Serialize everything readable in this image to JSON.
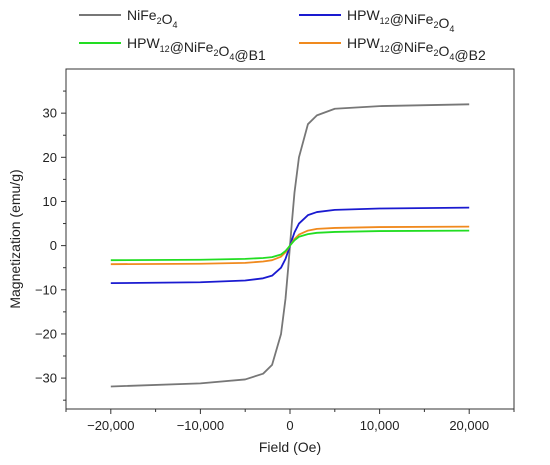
{
  "chart_data": {
    "type": "line",
    "title": "",
    "xlabel": "Field (Oe)",
    "ylabel": "Magnetization (emu/g)",
    "xlim": [
      -25000,
      25000
    ],
    "ylim": [
      -37,
      40
    ],
    "x_ticks": [
      -20000,
      -10000,
      0,
      10000,
      20000
    ],
    "x_tick_labels": [
      "−20,000",
      "−10,000",
      "0",
      "10,000",
      "20,000"
    ],
    "y_ticks": [
      -30,
      -20,
      -10,
      0,
      10,
      20,
      30
    ],
    "y_tick_labels": [
      "−30",
      "−20",
      "−10",
      "0",
      "10",
      "20",
      "30"
    ],
    "grid": false,
    "legend_placement": "top, outside plot, two columns",
    "series": [
      {
        "name": "NiFe2O4",
        "legend_parts": [
          [
            "NiFe",
            false
          ],
          [
            "2",
            true
          ],
          [
            "O",
            false
          ],
          [
            "4",
            true
          ]
        ],
        "color": "#777777",
        "x": [
          -20000,
          -10000,
          -5000,
          -3000,
          -2000,
          -1000,
          -500,
          -200,
          0,
          200,
          500,
          1000,
          2000,
          3000,
          5000,
          10000,
          20000
        ],
        "y": [
          -31.9,
          -31.2,
          -30.3,
          -29.0,
          -27.0,
          -20.0,
          -12.0,
          -5.0,
          0,
          5.0,
          12.0,
          20.0,
          27.5,
          29.5,
          31.0,
          31.6,
          32.0
        ]
      },
      {
        "name": "HPW12@NiFe2O4",
        "legend_parts": [
          [
            "HPW",
            false
          ],
          [
            "12",
            true
          ],
          [
            "@NiFe",
            false
          ],
          [
            "2",
            true
          ],
          [
            "O",
            false
          ],
          [
            "4",
            true
          ]
        ],
        "color": "#1a1ad0",
        "x": [
          -20000,
          -10000,
          -5000,
          -3000,
          -2000,
          -1000,
          -500,
          -200,
          0,
          200,
          500,
          1000,
          2000,
          3000,
          5000,
          10000,
          20000
        ],
        "y": [
          -8.5,
          -8.3,
          -7.9,
          -7.4,
          -6.8,
          -5.0,
          -3.0,
          -1.2,
          0,
          1.2,
          3.0,
          5.0,
          6.9,
          7.6,
          8.1,
          8.4,
          8.6
        ]
      },
      {
        "name": "HPW12@NiFe2O4@B1",
        "legend_parts": [
          [
            "HPW",
            false
          ],
          [
            "12",
            true
          ],
          [
            "@NiFe",
            false
          ],
          [
            "2",
            true
          ],
          [
            "O",
            false
          ],
          [
            "4",
            true
          ],
          [
            "@B1",
            false
          ]
        ],
        "color": "#22dd22",
        "x": [
          -20000,
          -10000,
          -5000,
          -3000,
          -2000,
          -1000,
          -500,
          -200,
          0,
          200,
          500,
          1000,
          2000,
          3000,
          5000,
          10000,
          20000
        ],
        "y": [
          -3.3,
          -3.2,
          -3.0,
          -2.8,
          -2.6,
          -2.0,
          -1.2,
          -0.5,
          0,
          0.5,
          1.2,
          2.0,
          2.6,
          2.9,
          3.1,
          3.3,
          3.4
        ]
      },
      {
        "name": "HPW12@NiFe2O4@B2",
        "legend_parts": [
          [
            "HPW",
            false
          ],
          [
            "12",
            true
          ],
          [
            "@NiFe",
            false
          ],
          [
            "2",
            true
          ],
          [
            "O",
            false
          ],
          [
            "4",
            true
          ],
          [
            "@B2",
            false
          ]
        ],
        "color": "#f08a1e",
        "x": [
          -20000,
          -10000,
          -5000,
          -3000,
          -2000,
          -1000,
          -500,
          -200,
          0,
          200,
          500,
          1000,
          2000,
          3000,
          5000,
          10000,
          20000
        ],
        "y": [
          -4.2,
          -4.1,
          -3.9,
          -3.6,
          -3.3,
          -2.5,
          -1.5,
          -0.6,
          0,
          0.6,
          1.5,
          2.5,
          3.4,
          3.8,
          4.0,
          4.2,
          4.3
        ]
      }
    ]
  }
}
